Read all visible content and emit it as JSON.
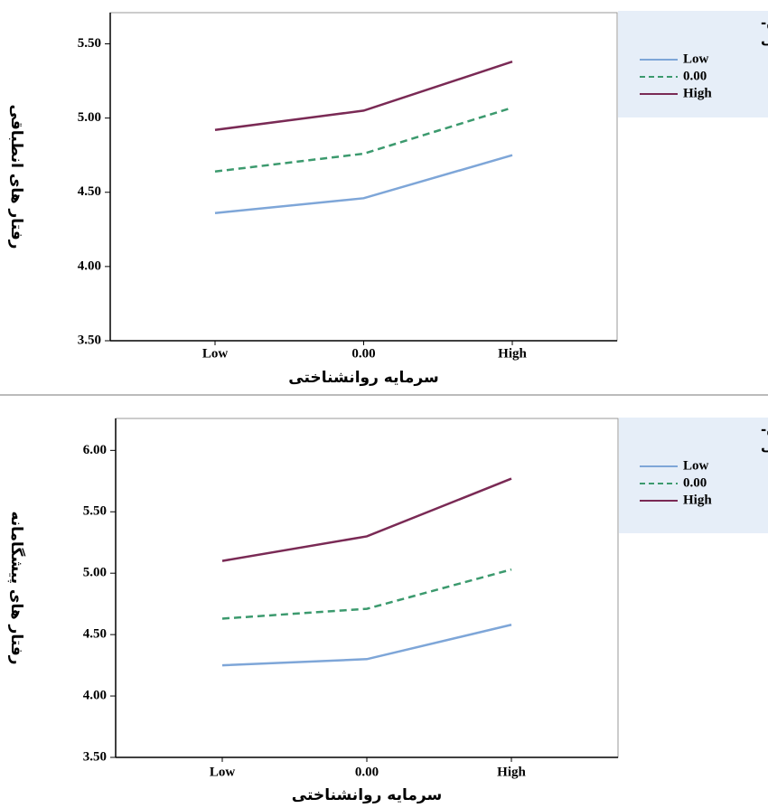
{
  "chart_data": [
    {
      "type": "line",
      "x_label": "سرمایه روانشناختی",
      "y_label": "رفتار های انطباقی",
      "legend_title": [
        "جو امن روان-",
        "اجتماعی"
      ],
      "categories": [
        "Low",
        "0.00",
        "High"
      ],
      "ylim": [
        3.5,
        5.71
      ],
      "yticks": [
        {
          "value": 3.5,
          "label": "3.50"
        },
        {
          "value": 4,
          "label": "4.00"
        },
        {
          "value": 4.5,
          "label": "4.50"
        },
        {
          "value": 5,
          "label": "5.00"
        },
        {
          "value": 5.5,
          "label": "5.50"
        }
      ],
      "series": [
        {
          "name": "Low",
          "color": "#7ea6d8",
          "values": [
            4.36,
            4.46,
            4.75
          ]
        },
        {
          "name": "0.00",
          "color": "#3c9a6e",
          "dashed": true,
          "values": [
            4.64,
            4.76,
            5.07
          ]
        },
        {
          "name": "High",
          "color": "#7a2a55",
          "values": [
            4.92,
            5.05,
            5.38
          ]
        }
      ]
    },
    {
      "type": "line",
      "x_label": "سرمایه روانشناختی",
      "y_label": "رفتار های پیشگامانه",
      "legend_title": [
        "جو امن روان-",
        "اجتماعی"
      ],
      "categories": [
        "Low",
        "0.00",
        "High"
      ],
      "ylim": [
        3.5,
        6.26
      ],
      "yticks": [
        {
          "value": 3.5,
          "label": "3.50"
        },
        {
          "value": 4,
          "label": "4.00"
        },
        {
          "value": 4.5,
          "label": "4.50"
        },
        {
          "value": 5,
          "label": "5.00"
        },
        {
          "value": 5.5,
          "label": "5.50"
        },
        {
          "value": 6,
          "label": "6.00"
        }
      ],
      "series": [
        {
          "name": "Low",
          "color": "#7ea6d8",
          "values": [
            4.25,
            4.3,
            4.58
          ]
        },
        {
          "name": "0.00",
          "color": "#3c9a6e",
          "dashed": true,
          "values": [
            4.63,
            4.71,
            5.03
          ]
        },
        {
          "name": "High",
          "color": "#7a2a55",
          "values": [
            5.1,
            5.3,
            5.77
          ]
        }
      ]
    }
  ]
}
